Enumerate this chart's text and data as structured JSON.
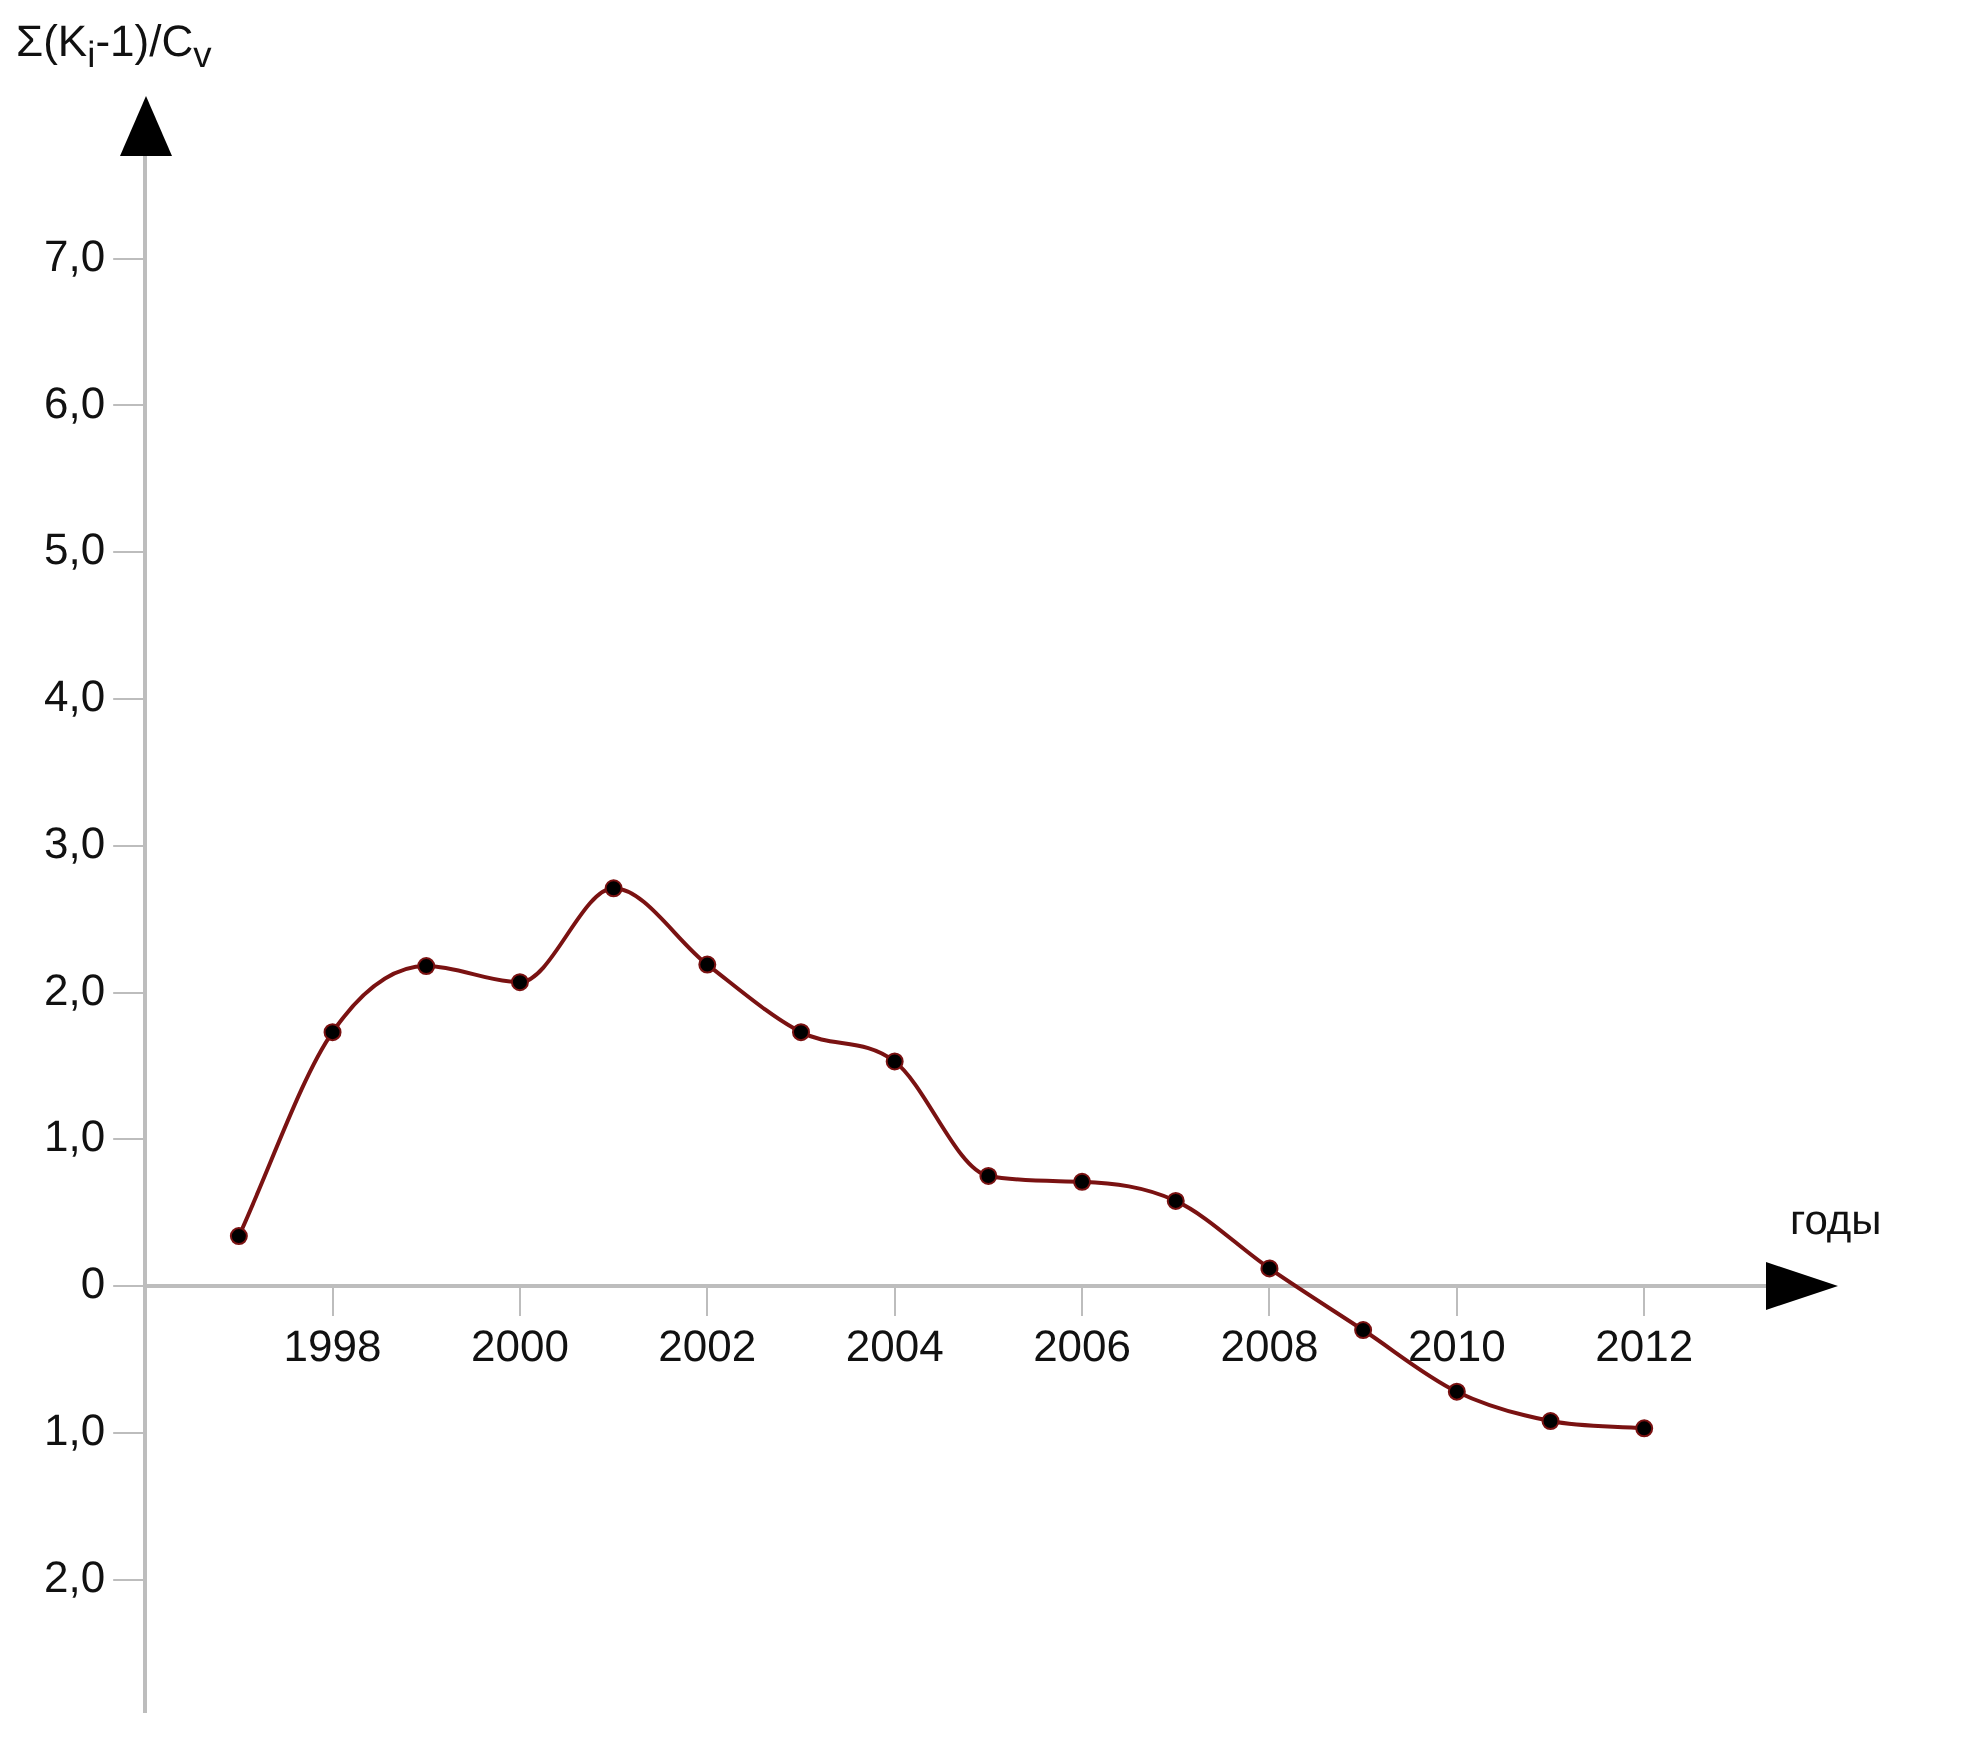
{
  "chart_data": {
    "type": "line",
    "ylabel": "Σ(K$_{i}$-1)/C$_{v}$",
    "xlabel": "годы",
    "x": [
      1997,
      1998,
      1999,
      2000,
      2001,
      2002,
      2003,
      2004,
      2005,
      2006,
      2007,
      2008,
      2009,
      2010,
      2011,
      2012
    ],
    "series": [
      {
        "color": "#7a1212",
        "values": [
          0.34,
          1.73,
          2.18,
          2.07,
          2.71,
          2.19,
          1.73,
          1.53,
          0.75,
          0.71,
          0.58,
          0.12,
          -0.3,
          -0.72,
          -0.92,
          -0.97
        ]
      }
    ],
    "xlim": [
      1996,
      2013.3
    ],
    "xticks": [
      1998,
      2000,
      2002,
      2004,
      2006,
      2008,
      2010,
      2012
    ],
    "ylim": [
      -2.9,
      7.7
    ],
    "yticks": [
      {
        "value": -2,
        "label": "2,0"
      },
      {
        "value": -1,
        "label": "1,0"
      },
      0,
      {
        "value": 1,
        "label": "1,0"
      },
      {
        "value": 2,
        "label": "2,0"
      },
      {
        "value": 3,
        "label": "3,0"
      },
      {
        "value": 4,
        "label": "4,0"
      },
      {
        "value": 5,
        "label": "5,0"
      },
      {
        "value": 6,
        "label": "6,0"
      },
      {
        "value": 7,
        "label": "7,0"
      }
    ],
    "marker": "circle",
    "line_style": "solid",
    "grid": false,
    "legend": false
  }
}
